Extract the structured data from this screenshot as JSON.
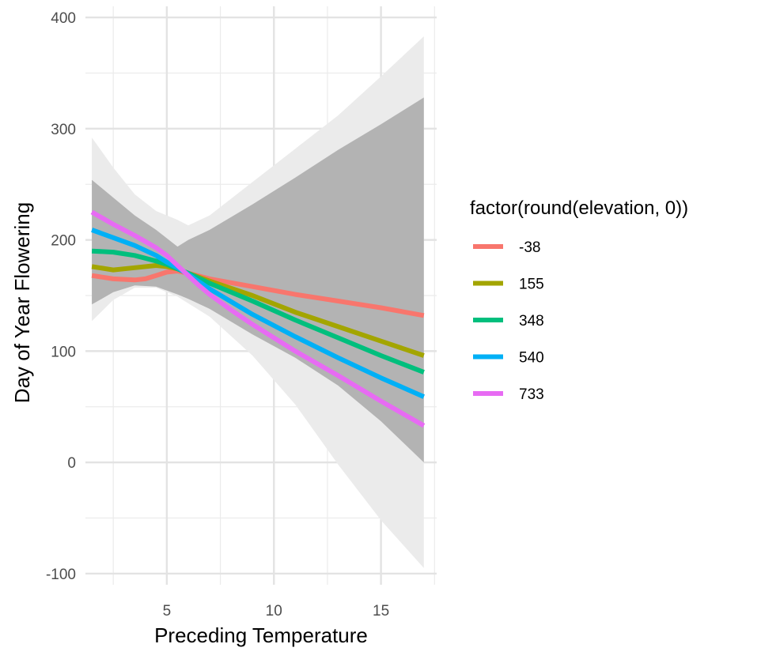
{
  "chart_data": {
    "type": "line",
    "xlabel": "Preceding Temperature",
    "ylabel": "Day of Year Flowering",
    "xlim": [
      1.2,
      17.6
    ],
    "ylim": [
      -110,
      410
    ],
    "x_ticks": [
      5,
      10,
      15
    ],
    "x_tick_labels": [
      "5",
      "10",
      "15"
    ],
    "x_minor_ticks": [
      2.5,
      7.5,
      12.5,
      17.5
    ],
    "y_ticks": [
      -100,
      0,
      100,
      200,
      300,
      400
    ],
    "y_tick_labels": [
      "-100",
      "0",
      "100",
      "200",
      "300",
      "400"
    ],
    "y_minor_ticks": [
      -50,
      50,
      150,
      250,
      350
    ],
    "grid": true,
    "legend": {
      "title": "factor(round(elevation, 0))",
      "position": "right"
    },
    "ribbons": [
      {
        "label": "outer confidence band",
        "color": "#ebebeb",
        "x": [
          1.5,
          2.5,
          3.5,
          4.5,
          5.5,
          6.0,
          7.0,
          9.0,
          11.0,
          13.0,
          15.0,
          17.0
        ],
        "upper": [
          292,
          265,
          241,
          226,
          218,
          213,
          222,
          252,
          282,
          312,
          347,
          383
        ],
        "lower": [
          127,
          146,
          157,
          157,
          149,
          143,
          131,
          96,
          52,
          -2,
          -52,
          -95
        ]
      },
      {
        "label": "inner confidence band",
        "color": "#b3b3b3",
        "x": [
          1.5,
          2.5,
          3.5,
          4.5,
          5.5,
          6.0,
          7.0,
          9.0,
          11.0,
          13.0,
          15.0,
          17.0
        ],
        "upper": [
          254,
          238,
          222,
          209,
          194,
          200,
          209,
          232,
          256,
          281,
          304,
          328
        ],
        "lower": [
          142,
          153,
          159,
          158,
          151,
          147,
          138,
          115,
          94,
          69,
          37,
          0
        ]
      }
    ],
    "series": [
      {
        "name": "-38",
        "color": "#F8766D",
        "x": [
          1.5,
          2.5,
          3.5,
          4.0,
          4.5,
          5.0,
          5.5,
          6.0,
          7.0,
          9.0,
          11.0,
          13.0,
          15.0,
          17.0
        ],
        "values": [
          168,
          165,
          164,
          165,
          168,
          171,
          172,
          170,
          165,
          158,
          151,
          145,
          139,
          132
        ]
      },
      {
        "name": "155",
        "color": "#A3A500",
        "x": [
          1.5,
          2.5,
          3.5,
          4.5,
          5.0,
          5.5,
          6.0,
          7.0,
          9.0,
          11.0,
          13.0,
          15.0,
          17.0
        ],
        "values": [
          176,
          173,
          175,
          177,
          176,
          174,
          170,
          163,
          150,
          135,
          122,
          109,
          96
        ]
      },
      {
        "name": "348",
        "color": "#00BF7D",
        "x": [
          1.5,
          2.5,
          3.5,
          4.5,
          5.0,
          5.5,
          6.0,
          7.0,
          9.0,
          11.0,
          13.0,
          15.0,
          17.0
        ],
        "values": [
          190,
          189,
          186,
          181,
          178,
          174,
          170,
          161,
          145,
          128,
          112,
          96,
          81
        ]
      },
      {
        "name": "540",
        "color": "#00B0F6",
        "x": [
          1.5,
          2.5,
          3.5,
          4.5,
          5.0,
          5.5,
          6.0,
          7.0,
          9.0,
          11.0,
          13.0,
          15.0,
          17.0
        ],
        "values": [
          209,
          202,
          195,
          186,
          180,
          175,
          169,
          156,
          133,
          113,
          94,
          76,
          59
        ]
      },
      {
        "name": "733",
        "color": "#E76BF3",
        "x": [
          1.5,
          2.5,
          3.5,
          4.5,
          5.0,
          5.5,
          6.0,
          6.5,
          7.0,
          8.0,
          9.0,
          11.0,
          13.0,
          15.0,
          17.0
        ],
        "values": [
          225,
          214,
          204,
          193,
          186,
          177,
          168,
          159,
          151,
          137,
          124,
          100,
          78,
          55,
          33
        ]
      }
    ]
  }
}
